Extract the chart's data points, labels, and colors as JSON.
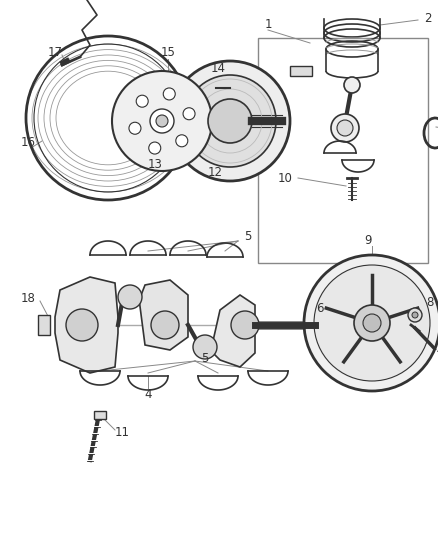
{
  "bg_color": "#ffffff",
  "lc": "#555555",
  "dc": "#333333",
  "figsize": [
    4.38,
    5.33
  ],
  "dpi": 100,
  "label_fs": 8.5,
  "thin_lw": 0.8,
  "med_lw": 1.2,
  "thick_lw": 2.0
}
